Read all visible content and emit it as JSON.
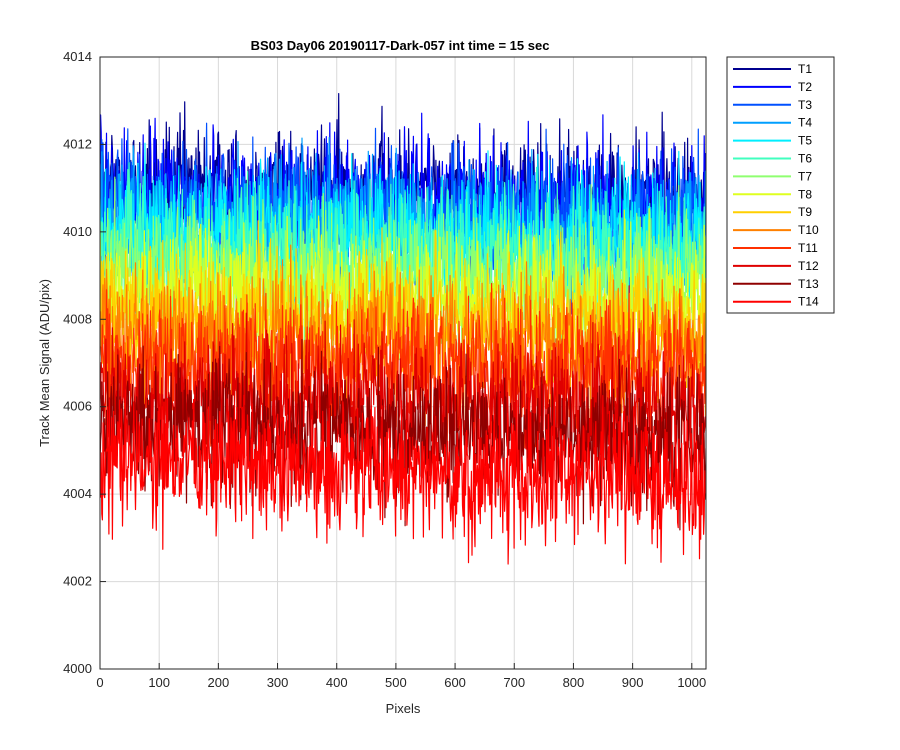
{
  "chart_data": {
    "type": "line",
    "title": "BS03 Day06 20190117-Dark-057 int time = 15 sec",
    "xlabel": "Pixels",
    "ylabel": "Track Mean Signal (ADU/pix)",
    "xlim": [
      0,
      1024
    ],
    "ylim": [
      4000,
      4014
    ],
    "xticks": [
      "0",
      "100",
      "200",
      "300",
      "400",
      "500",
      "600",
      "700",
      "800",
      "900",
      "1000"
    ],
    "yticks": [
      "4000",
      "4002",
      "4004",
      "4006",
      "4008",
      "4010",
      "4012",
      "4014"
    ],
    "grid": true,
    "legend_location": "outside-top-right",
    "points_per_series": 1024,
    "series": [
      {
        "name": "T1",
        "color": "#00008f",
        "mean": 4011.0,
        "noise": 0.75
      },
      {
        "name": "T2",
        "color": "#0000ff",
        "mean": 4010.8,
        "noise": 0.75
      },
      {
        "name": "T3",
        "color": "#0050ff",
        "mean": 4010.5,
        "noise": 0.75
      },
      {
        "name": "T4",
        "color": "#009fff",
        "mean": 4010.3,
        "noise": 0.75
      },
      {
        "name": "T5",
        "color": "#00efff",
        "mean": 4010.0,
        "noise": 0.75
      },
      {
        "name": "T6",
        "color": "#40ffbf",
        "mean": 4009.6,
        "noise": 0.75
      },
      {
        "name": "T7",
        "color": "#8fff70",
        "mean": 4009.1,
        "noise": 0.75
      },
      {
        "name": "T8",
        "color": "#dfff20",
        "mean": 4008.6,
        "noise": 0.75
      },
      {
        "name": "T9",
        "color": "#ffcf00",
        "mean": 4008.1,
        "noise": 0.75
      },
      {
        "name": "T10",
        "color": "#ff8000",
        "mean": 4007.6,
        "noise": 0.75
      },
      {
        "name": "T11",
        "color": "#ff3000",
        "mean": 4007.0,
        "noise": 0.75
      },
      {
        "name": "T12",
        "color": "#df0000",
        "mean": 4006.2,
        "noise": 0.75
      },
      {
        "name": "T13",
        "color": "#8f0000",
        "mean": 4005.5,
        "noise": 0.75
      },
      {
        "name": "T14",
        "color": "#ff0000",
        "mean": 4004.7,
        "noise": 0.8
      }
    ]
  }
}
